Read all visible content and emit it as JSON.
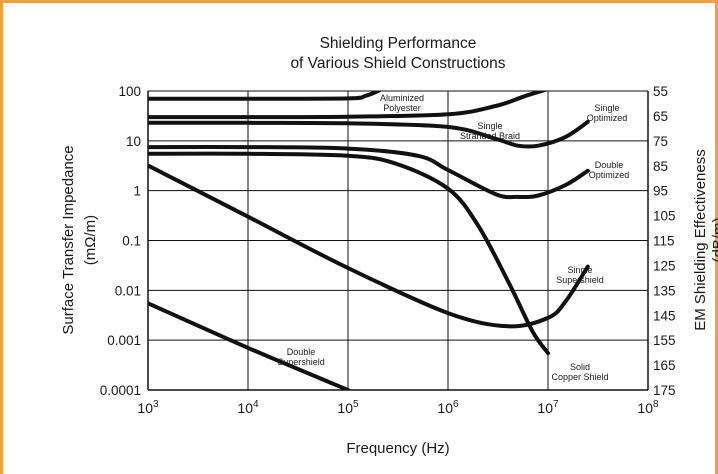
{
  "colors": {
    "frame_border": "#f2a13a",
    "line": "#111111",
    "background": "#ffffff"
  },
  "chart_data": {
    "type": "line",
    "title": [
      "Shielding Performance",
      "of Various Shield Constructions"
    ],
    "xlabel": "Frequency (Hz)",
    "ylabel": [
      "Surface Transfer Impedance",
      "(mΩ/m)"
    ],
    "y2label": [
      "EM Shielding Effectiveness",
      "(dB/m)"
    ],
    "x_scale": "log",
    "y_scale": "log",
    "xlim": [
      1000,
      100000000
    ],
    "ylim": [
      0.0001,
      100
    ],
    "y2lim": [
      55,
      175
    ],
    "grid": true,
    "x_ticks": [
      {
        "value": 1000,
        "base": "10",
        "exp": "3"
      },
      {
        "value": 10000,
        "base": "10",
        "exp": "4"
      },
      {
        "value": 100000,
        "base": "10",
        "exp": "5"
      },
      {
        "value": 1000000,
        "base": "10",
        "exp": "6"
      },
      {
        "value": 10000000,
        "base": "10",
        "exp": "7"
      },
      {
        "value": 100000000,
        "base": "10",
        "exp": "8"
      }
    ],
    "y_ticks": [
      {
        "value": 100,
        "label": "100"
      },
      {
        "value": 10,
        "label": "10"
      },
      {
        "value": 1,
        "label": "1"
      },
      {
        "value": 0.1,
        "label": "0.1"
      },
      {
        "value": 0.01,
        "label": "0.01"
      },
      {
        "value": 0.001,
        "label": "0.001"
      },
      {
        "value": 0.0001,
        "label": "0.0001"
      }
    ],
    "y2_ticks": [
      "55",
      "65",
      "75",
      "85",
      "95",
      "105",
      "115",
      "125",
      "135",
      "145",
      "155",
      "165",
      "175"
    ],
    "series": [
      {
        "name": "Aluminized Polyester",
        "label_lines": [
          "Aluminized",
          "Polyester"
        ],
        "x": [
          1000,
          10000,
          100000,
          150000,
          200000,
          250000
        ],
        "y": [
          70,
          70,
          71,
          80,
          100,
          130
        ]
      },
      {
        "name": "Single Stranded Braid",
        "label_lines": [
          "Single",
          "Stranded Braid"
        ],
        "x": [
          1000,
          10000,
          100000,
          1000000,
          3000000,
          6000000,
          10000000,
          12000000
        ],
        "y": [
          30,
          30,
          30.5,
          34,
          50,
          80,
          110,
          130
        ]
      },
      {
        "name": "Single Optimized",
        "label_lines": [
          "Single",
          "Optimized"
        ],
        "x": [
          1000,
          10000,
          100000,
          1000000,
          3000000,
          5000000,
          8000000,
          15000000,
          25000000
        ],
        "y": [
          23,
          23,
          22.5,
          19,
          11,
          8,
          8,
          12,
          24
        ]
      },
      {
        "name": "Double Optimized",
        "label_lines": [
          "Double",
          "Optimized"
        ],
        "x": [
          1000,
          10000,
          100000,
          500000,
          1000000,
          3000000,
          5000000,
          8000000,
          15000000,
          25000000
        ],
        "y": [
          7.5,
          7.5,
          7,
          5,
          2.6,
          0.85,
          0.75,
          0.8,
          1.3,
          2.5
        ]
      },
      {
        "name": "Solid Copper Shield",
        "label_lines": [
          "Solid",
          "Copper Shield"
        ],
        "x": [
          1000,
          10000,
          100000,
          300000,
          1000000,
          2000000,
          4000000,
          7000000,
          10000000
        ],
        "y": [
          5.5,
          5.5,
          5,
          3.5,
          1.1,
          0.2,
          0.015,
          0.0015,
          0.00055
        ]
      },
      {
        "name": "Single Supershield",
        "label_lines": [
          "Single",
          "Supershield"
        ],
        "x": [
          1000,
          10000,
          100000,
          1000000,
          4000000,
          10000000,
          15000000,
          25000000
        ],
        "y": [
          3.2,
          0.3,
          0.028,
          0.0035,
          0.0019,
          0.0028,
          0.006,
          0.03
        ]
      },
      {
        "name": "Double Supershield",
        "label_lines": [
          "Double",
          "Supershield"
        ],
        "x": [
          1000,
          10000,
          100000
        ],
        "y": [
          0.0055,
          0.0007,
          0.0001
        ]
      }
    ]
  }
}
